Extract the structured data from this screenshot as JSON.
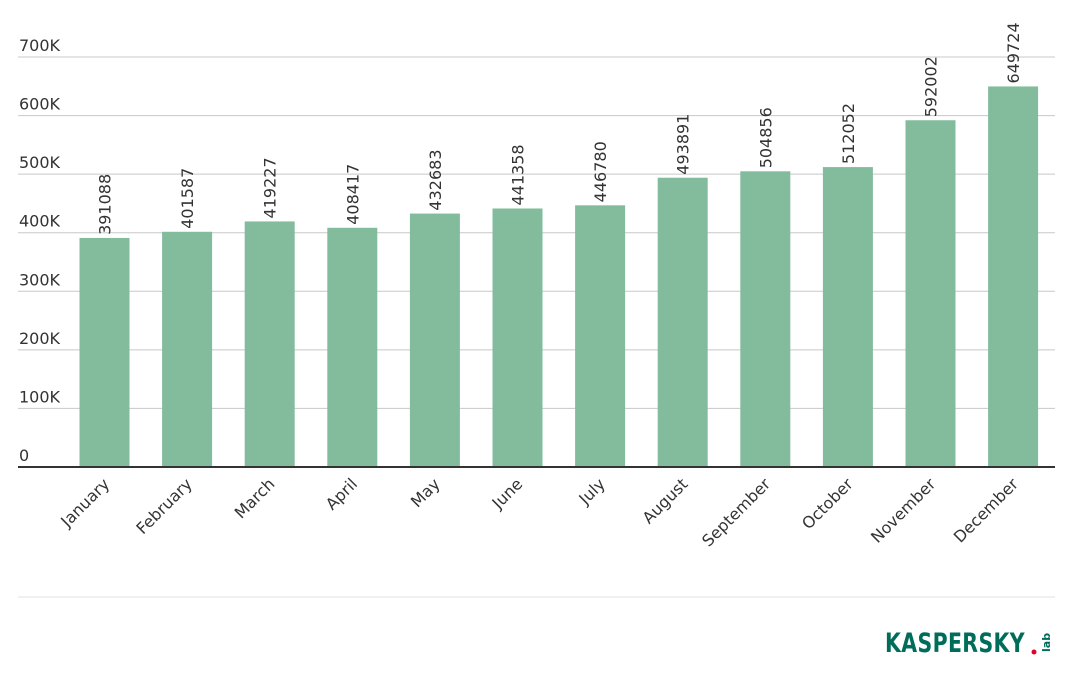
{
  "chart_data": {
    "type": "bar",
    "categories": [
      "January",
      "February",
      "March",
      "April",
      "May",
      "June",
      "July",
      "August",
      "September",
      "October",
      "November",
      "December"
    ],
    "values": [
      391088,
      401587,
      419227,
      408417,
      432683,
      441358,
      446780,
      493891,
      504856,
      512052,
      592002,
      649724
    ],
    "value_labels": [
      "391088",
      "401587",
      "419227",
      "408417",
      "432683",
      "441358",
      "446780",
      "493891",
      "504856",
      "512052",
      "592002",
      "649724"
    ],
    "ylim": [
      0,
      700000
    ],
    "yticks": [
      0,
      100000,
      200000,
      300000,
      400000,
      500000,
      600000,
      700000
    ],
    "ytick_labels": [
      "0",
      "100K",
      "200K",
      "300K",
      "400K",
      "500K",
      "600K",
      "700K"
    ],
    "grid": true,
    "bar_color": "#82bc9c",
    "title": "",
    "xlabel": "",
    "ylabel": ""
  },
  "logo": {
    "brand": "KASPERSKY",
    "suffix": "lab",
    "color": "#006d5b",
    "accent": "#e4002b"
  }
}
